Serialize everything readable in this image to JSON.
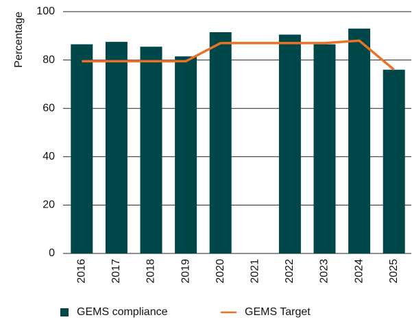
{
  "chart_data": {
    "type": "bar",
    "y_label": "Percentage",
    "categories": [
      "2016",
      "2017",
      "2018",
      "2019",
      "2020",
      "2021",
      "2022",
      "2023",
      "2024",
      "2025"
    ],
    "series": [
      {
        "name": "GEMS compliance",
        "type": "bar",
        "color": "#00474a",
        "values": [
          86.5,
          87.5,
          85.5,
          81.5,
          91.5,
          null,
          90.5,
          86.5,
          93,
          76
        ]
      },
      {
        "name": "GEMS Target",
        "type": "line",
        "color": "#ea7125",
        "values": [
          79.5,
          79.5,
          79.5,
          79.5,
          87,
          87,
          87,
          87,
          88,
          76
        ]
      }
    ],
    "ylim": [
      0,
      100
    ],
    "yticks": [
      0,
      20,
      40,
      60,
      80,
      100
    ],
    "grid": true,
    "legend": "bottom"
  }
}
